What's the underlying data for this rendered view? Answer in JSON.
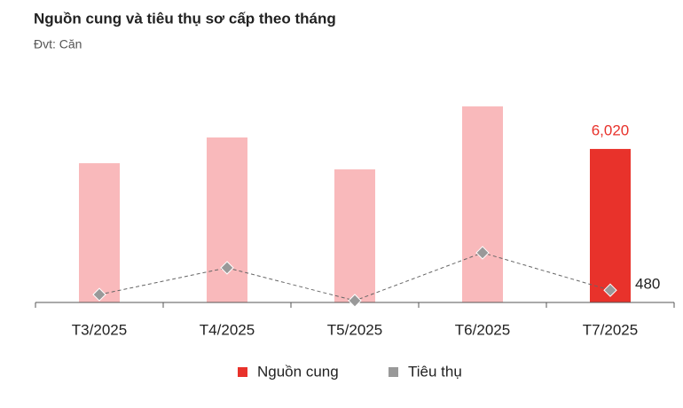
{
  "chart_data": {
    "type": "bar-line",
    "title": "Nguồn cung và tiêu thụ sơ cấp theo tháng",
    "subtitle": "Đvt: Căn",
    "categories": [
      "T3/2025",
      "T4/2025",
      "T5/2025",
      "T6/2025",
      "T7/2025"
    ],
    "series": [
      {
        "name": "Nguồn cung",
        "type": "bar",
        "color": "#e8322b",
        "bar_colors": [
          "#f9b9bb",
          "#f9b9bb",
          "#f9b9bb",
          "#f9b9bb",
          "#e8322b"
        ],
        "values": [
          5460,
          6470,
          5220,
          7690,
          6020
        ],
        "value_labels": [
          null,
          null,
          null,
          null,
          "6,020"
        ]
      },
      {
        "name": "Tiêu thụ",
        "type": "line",
        "color": "#999999",
        "values": [
          310,
          1360,
          70,
          1950,
          480
        ],
        "value_labels": [
          null,
          null,
          null,
          null,
          "480"
        ]
      }
    ],
    "ylim": [
      0,
      8000
    ]
  }
}
